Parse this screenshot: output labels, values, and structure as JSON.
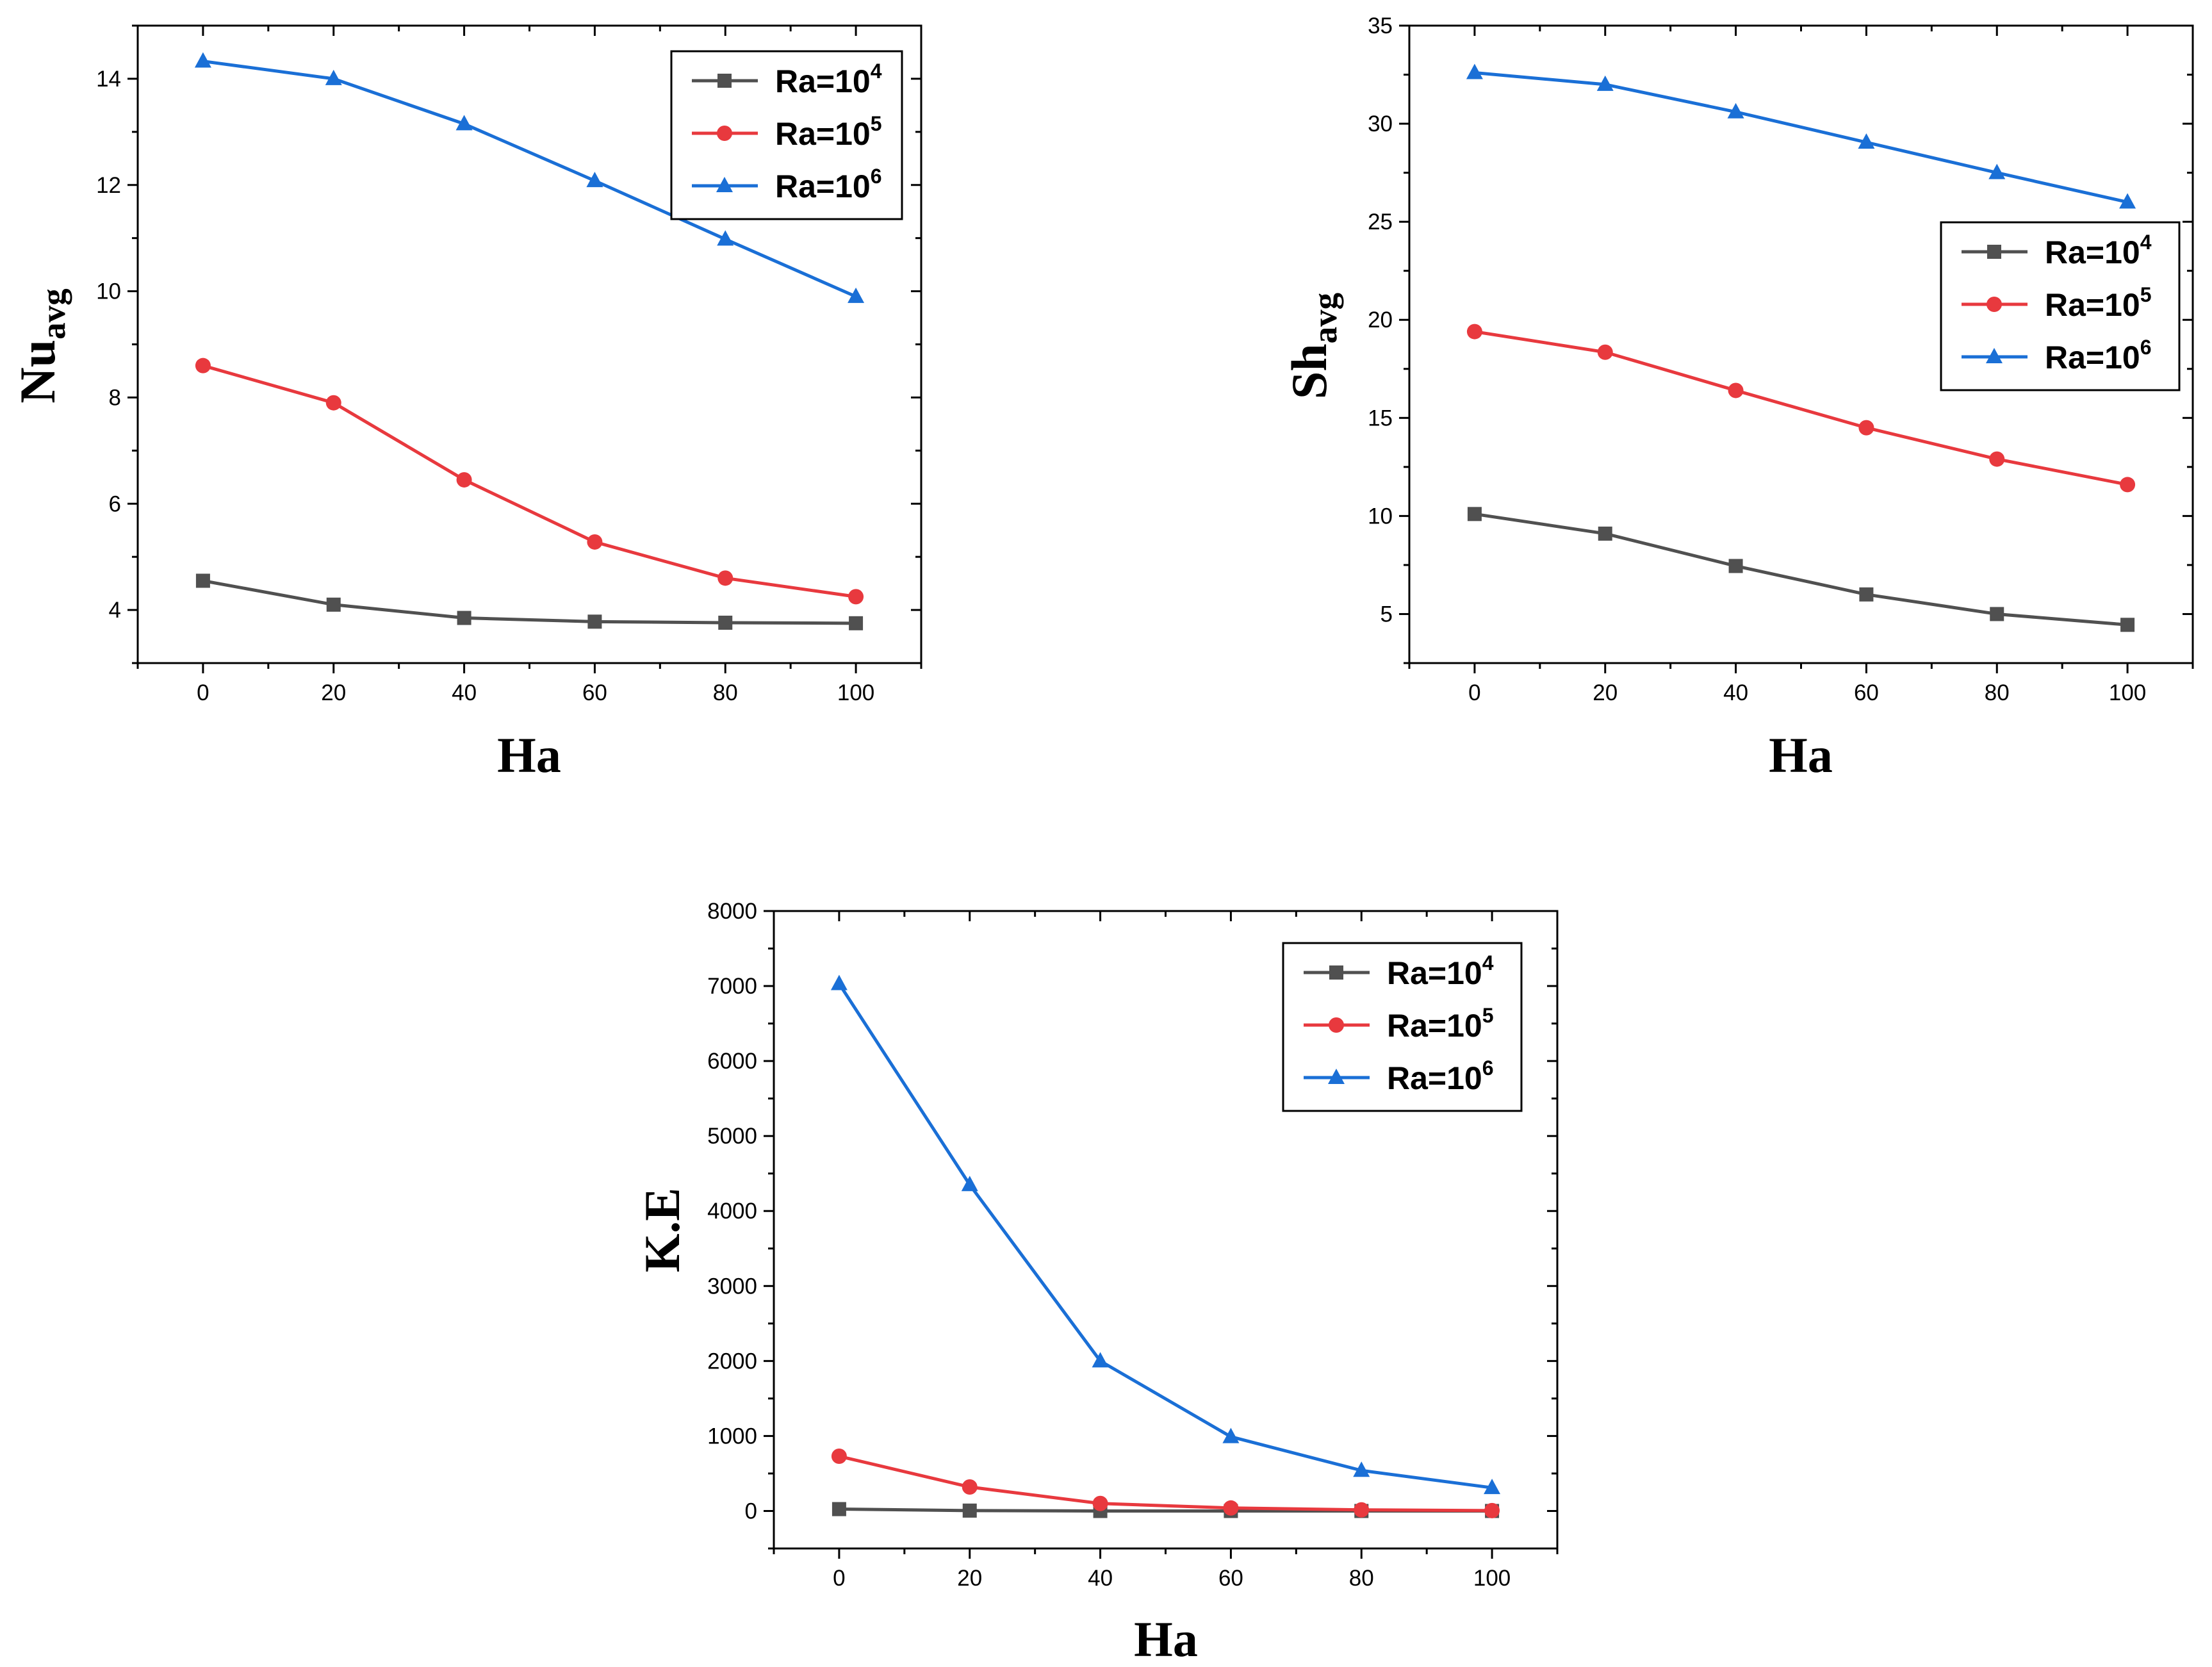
{
  "chart_data": [
    {
      "type": "line",
      "xlabel": "Ha",
      "ylabel": "Nu",
      "ylabel_sub": "avg",
      "x": [
        0,
        20,
        40,
        60,
        80,
        100
      ],
      "xlim": [
        -10,
        110
      ],
      "ylim": [
        3,
        15
      ],
      "xticks": [
        0,
        20,
        40,
        60,
        80,
        100
      ],
      "yticks": [
        4,
        6,
        8,
        10,
        12,
        14
      ],
      "legend_position": "top-right",
      "series": [
        {
          "name": "Ra=10",
          "sup": "4",
          "color": "#505050",
          "marker": "square",
          "values": [
            4.55,
            4.1,
            3.85,
            3.78,
            3.76,
            3.75
          ]
        },
        {
          "name": "Ra=10",
          "sup": "5",
          "color": "#e8393e",
          "marker": "circle",
          "values": [
            8.6,
            7.9,
            6.45,
            5.28,
            4.6,
            4.25
          ]
        },
        {
          "name": "Ra=10",
          "sup": "6",
          "color": "#1a6fd6",
          "marker": "triangle",
          "values": [
            14.33,
            14.0,
            13.15,
            12.08,
            10.98,
            9.9
          ]
        }
      ]
    },
    {
      "type": "line",
      "xlabel": "Ha",
      "ylabel": "Sh",
      "ylabel_sub": "avg",
      "x": [
        0,
        20,
        40,
        60,
        80,
        100
      ],
      "xlim": [
        -10,
        110
      ],
      "ylim": [
        2.5,
        35
      ],
      "xticks": [
        0,
        20,
        40,
        60,
        80,
        100
      ],
      "yticks": [
        5,
        10,
        15,
        20,
        25,
        30,
        35
      ],
      "legend_position": "center-right",
      "series": [
        {
          "name": "Ra=10",
          "sup": "4",
          "color": "#505050",
          "marker": "square",
          "values": [
            10.1,
            9.1,
            7.45,
            6.0,
            5.0,
            4.45
          ]
        },
        {
          "name": "Ra=10",
          "sup": "5",
          "color": "#e8393e",
          "marker": "circle",
          "values": [
            19.4,
            18.35,
            16.4,
            14.5,
            12.9,
            11.6
          ]
        },
        {
          "name": "Ra=10",
          "sup": "6",
          "color": "#1a6fd6",
          "marker": "triangle",
          "values": [
            32.6,
            32.0,
            30.6,
            29.05,
            27.5,
            26.0
          ]
        }
      ]
    },
    {
      "type": "line",
      "xlabel": "Ha",
      "ylabel": "K.E",
      "ylabel_sub": "",
      "x": [
        0,
        20,
        40,
        60,
        80,
        100
      ],
      "xlim": [
        -10,
        110
      ],
      "ylim": [
        -500,
        8000
      ],
      "xticks": [
        0,
        20,
        40,
        60,
        80,
        100
      ],
      "yticks": [
        0,
        1000,
        2000,
        3000,
        4000,
        5000,
        6000,
        7000,
        8000
      ],
      "legend_position": "top-right",
      "series": [
        {
          "name": "Ra=10",
          "sup": "4",
          "color": "#505050",
          "marker": "square",
          "values": [
            25,
            5,
            0,
            0,
            0,
            0
          ]
        },
        {
          "name": "Ra=10",
          "sup": "5",
          "color": "#e8393e",
          "marker": "circle",
          "values": [
            730,
            320,
            100,
            40,
            15,
            5
          ]
        },
        {
          "name": "Ra=10",
          "sup": "6",
          "color": "#1a6fd6",
          "marker": "triangle",
          "values": [
            7030,
            4350,
            2000,
            990,
            540,
            310
          ]
        }
      ]
    }
  ]
}
